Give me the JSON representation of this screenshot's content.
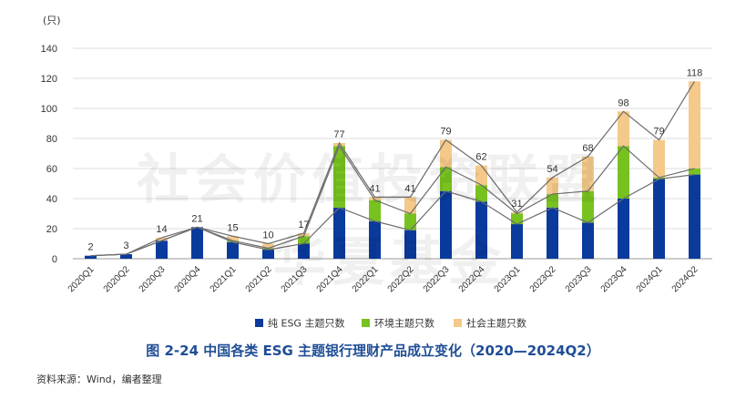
{
  "chart_data": {
    "type": "bar",
    "stacked": true,
    "title": "",
    "ylabel": "(只)",
    "xlabel": "",
    "ylim": [
      0,
      140
    ],
    "yticks": [
      0,
      20,
      40,
      60,
      80,
      100,
      120,
      140
    ],
    "grid": true,
    "legend_position": "bottom",
    "categories": [
      "2020Q1",
      "2020Q2",
      "2020Q3",
      "2020Q4",
      "2021Q1",
      "2021Q2",
      "2021Q3",
      "2021Q4",
      "2022Q1",
      "2022Q2",
      "2022Q3",
      "2022Q4",
      "2023Q1",
      "2023Q2",
      "2023Q3",
      "2023Q4",
      "2024Q1",
      "2024Q2"
    ],
    "series": [
      {
        "name": "纯 ESG 主题只数",
        "color": "#0a3a9c",
        "values": [
          2,
          3,
          12,
          21,
          11,
          6,
          10,
          34,
          25,
          19,
          45,
          38,
          23,
          34,
          24,
          40,
          53,
          56
        ]
      },
      {
        "name": "环境主题只数",
        "color": "#77c21f",
        "values": [
          0,
          0,
          0,
          0,
          1,
          1,
          5,
          41,
          14,
          11,
          16,
          11,
          7,
          9,
          21,
          35,
          1,
          4
        ]
      },
      {
        "name": "社会主题只数",
        "color": "#f4c98a",
        "values": [
          0,
          0,
          2,
          0,
          3,
          3,
          2,
          2,
          2,
          11,
          18,
          13,
          1,
          11,
          23,
          23,
          25,
          58
        ]
      }
    ],
    "totals": [
      2,
      3,
      14,
      21,
      15,
      10,
      17,
      77,
      41,
      41,
      79,
      62,
      31,
      54,
      68,
      98,
      79,
      118
    ]
  },
  "caption": "图 2-24   中国各类 ESG 主题银行理财产品成立变化（2020—2024Q2）",
  "source": "资料来源：Wind，编者整理",
  "watermark": {
    "line1": "社会价值投资联盟",
    "line2": "华夏基金"
  }
}
